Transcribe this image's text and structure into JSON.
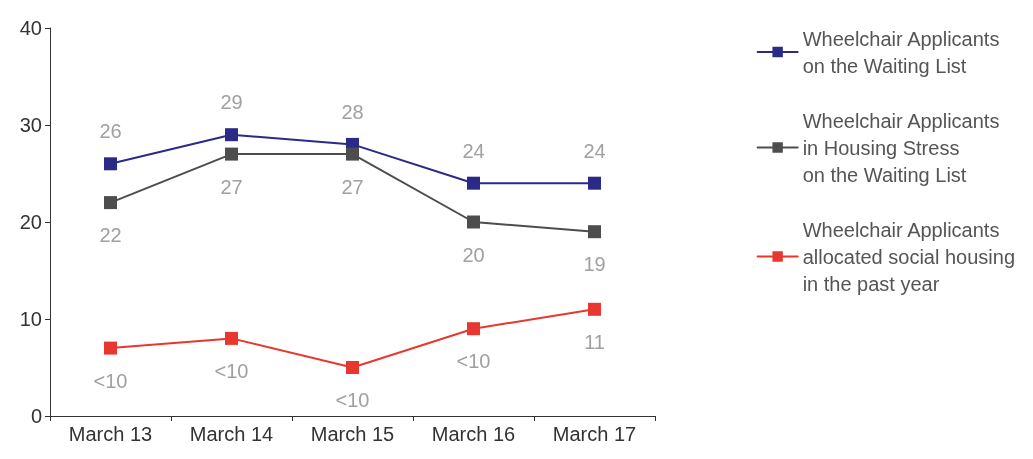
{
  "chart_data": {
    "type": "line",
    "categories": [
      "March 13",
      "March 14",
      "March 15",
      "March 16",
      "March 17"
    ],
    "series": [
      {
        "name": "Wheelchair Applicants\non the Waiting List",
        "color": "#2b2a86",
        "values": [
          26,
          29,
          28,
          24,
          24
        ],
        "value_labels": [
          "26",
          "29",
          "28",
          "24",
          "24"
        ]
      },
      {
        "name": "Wheelchair Applicants\nin Housing Stress\non the Waiting List",
        "color": "#4d4d4d",
        "values": [
          22,
          27,
          27,
          20,
          19
        ],
        "value_labels": [
          "22",
          "27",
          "27",
          "20",
          "19"
        ]
      },
      {
        "name": "Wheelchair Applicants\nallocated social housing\nin the past year",
        "color": "#e8372e",
        "values": [
          7,
          8,
          5,
          9,
          11
        ],
        "value_labels": [
          "<10",
          "<10",
          "<10",
          "<10",
          "11"
        ]
      }
    ],
    "ylim": [
      0,
      40
    ],
    "yticks": [
      0,
      10,
      20,
      30,
      40
    ],
    "grid": false,
    "legend": "right",
    "marker": "square",
    "line_style": "solid"
  }
}
